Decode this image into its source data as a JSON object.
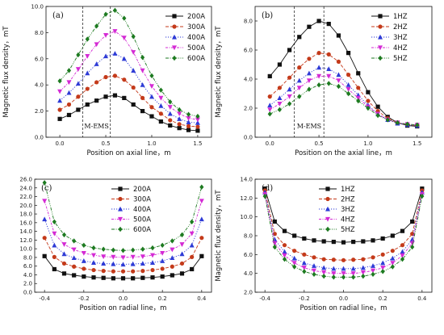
{
  "colors": {
    "black": "#111111",
    "red": "#c43a1a",
    "blue": "#2e3bd6",
    "magenta": "#d42ad4",
    "green": "#1d7a20"
  },
  "chart_data": [
    {
      "panel": "(a)",
      "type": "line",
      "xlabel": "Position on axial line，m",
      "ylabel": "Magnetic flux density，mT",
      "xlim": [
        -0.15,
        1.65
      ],
      "ylim": [
        0.0,
        10.0
      ],
      "xticks": [
        "0.0",
        "0.5",
        "1.0",
        "1.5"
      ],
      "yticks": [
        "0.0",
        "2.0",
        "4.0",
        "6.0",
        "8.0",
        "10.0"
      ],
      "xtick_values": [
        0,
        0.5,
        1.0,
        1.5
      ],
      "ytick_values": [
        0,
        2,
        4,
        6,
        8,
        10
      ],
      "legend_position": "top-right",
      "annotation": "M-EMS",
      "vlines": [
        0.25,
        0.55
      ],
      "x": [
        0.0,
        0.1,
        0.2,
        0.3,
        0.4,
        0.5,
        0.6,
        0.7,
        0.8,
        0.9,
        1.0,
        1.1,
        1.2,
        1.3,
        1.4,
        1.5
      ],
      "series": [
        {
          "name": "200A",
          "color": "black",
          "marker": "square",
          "values": [
            1.4,
            1.7,
            2.1,
            2.5,
            2.8,
            3.1,
            3.2,
            3.0,
            2.5,
            2.0,
            1.6,
            1.2,
            0.9,
            0.7,
            0.55,
            0.5
          ]
        },
        {
          "name": "300A",
          "color": "red",
          "marker": "circle",
          "values": [
            2.1,
            2.5,
            3.1,
            3.7,
            4.2,
            4.6,
            4.7,
            4.4,
            3.8,
            3.0,
            2.3,
            1.8,
            1.3,
            1.0,
            0.85,
            0.8
          ]
        },
        {
          "name": "400A",
          "color": "blue",
          "marker": "triangle-up",
          "values": [
            2.8,
            3.4,
            4.1,
            4.9,
            5.6,
            6.2,
            6.4,
            6.0,
            5.1,
            4.0,
            3.1,
            2.4,
            1.8,
            1.4,
            1.15,
            1.1
          ]
        },
        {
          "name": "500A",
          "color": "magenta",
          "marker": "triangle-down",
          "values": [
            3.5,
            4.2,
            5.2,
            6.2,
            7.1,
            7.8,
            8.1,
            7.6,
            6.5,
            5.1,
            3.9,
            3.0,
            2.3,
            1.8,
            1.45,
            1.35
          ]
        },
        {
          "name": "600A",
          "color": "green",
          "marker": "diamond",
          "values": [
            4.3,
            5.1,
            6.3,
            7.5,
            8.5,
            9.4,
            9.7,
            9.1,
            7.7,
            6.1,
            4.7,
            3.6,
            2.7,
            2.1,
            1.75,
            1.6
          ]
        }
      ]
    },
    {
      "panel": "(b)",
      "type": "line",
      "xlabel": "Position on the axial line，m",
      "ylabel": "Magnetic flux density，mT",
      "xlim": [
        -0.15,
        1.65
      ],
      "ylim": [
        0.0,
        9.0
      ],
      "xticks": [
        "0.0",
        "0.5",
        "1.0",
        "1.5"
      ],
      "yticks": [
        "0.0",
        "2.0",
        "4.0",
        "6.0",
        "8.0"
      ],
      "xtick_values": [
        0,
        0.5,
        1.0,
        1.5
      ],
      "ytick_values": [
        0,
        2,
        4,
        6,
        8
      ],
      "legend_position": "top-right",
      "annotation": "M-EMS",
      "vlines": [
        0.25,
        0.55
      ],
      "x": [
        0.0,
        0.1,
        0.2,
        0.3,
        0.4,
        0.5,
        0.6,
        0.7,
        0.8,
        0.9,
        1.0,
        1.1,
        1.2,
        1.3,
        1.4,
        1.5
      ],
      "series": [
        {
          "name": "1HZ",
          "color": "black",
          "marker": "square",
          "values": [
            4.2,
            5.0,
            6.0,
            6.9,
            7.6,
            8.0,
            7.8,
            7.0,
            5.8,
            4.4,
            3.1,
            2.1,
            1.4,
            1.0,
            0.8,
            0.75
          ]
        },
        {
          "name": "2HZ",
          "color": "red",
          "marker": "circle",
          "values": [
            2.8,
            3.4,
            4.1,
            4.8,
            5.4,
            5.8,
            5.7,
            5.2,
            4.3,
            3.4,
            2.5,
            1.8,
            1.3,
            1.0,
            0.85,
            0.8
          ]
        },
        {
          "name": "3HZ",
          "color": "blue",
          "marker": "triangle-up",
          "values": [
            2.2,
            2.7,
            3.3,
            3.9,
            4.4,
            4.8,
            4.7,
            4.3,
            3.6,
            2.9,
            2.2,
            1.6,
            1.2,
            0.95,
            0.85,
            0.8
          ]
        },
        {
          "name": "4HZ",
          "color": "magenta",
          "marker": "triangle-down",
          "values": [
            1.9,
            2.3,
            2.8,
            3.4,
            3.9,
            4.2,
            4.2,
            3.9,
            3.3,
            2.7,
            2.1,
            1.6,
            1.2,
            1.0,
            0.9,
            0.85
          ]
        },
        {
          "name": "5HZ",
          "color": "green",
          "marker": "diamond",
          "values": [
            1.6,
            1.9,
            2.3,
            2.8,
            3.3,
            3.6,
            3.7,
            3.5,
            3.0,
            2.5,
            2.0,
            1.5,
            1.2,
            1.0,
            0.9,
            0.85
          ]
        }
      ]
    },
    {
      "panel": "(c)",
      "type": "line",
      "xlabel": "Position on radial line，m",
      "ylabel": "",
      "xlim": [
        -0.45,
        0.45
      ],
      "ylim": [
        0.0,
        26.0
      ],
      "xticks": [
        "-0.4",
        "-0.2",
        "0.0",
        "0.2",
        "0.4"
      ],
      "yticks": [
        "0.0",
        "2.0",
        "4.0",
        "6.0",
        "8.0",
        "10.0",
        "12.0",
        "14.0",
        "16.0",
        "18.0",
        "20.0",
        "22.0",
        "24.0",
        "26.0"
      ],
      "xtick_values": [
        -0.4,
        -0.2,
        0,
        0.2,
        0.4
      ],
      "ytick_values": [
        0,
        2,
        4,
        6,
        8,
        10,
        12,
        14,
        16,
        18,
        20,
        22,
        24,
        26
      ],
      "legend_position": "top-center",
      "x": [
        -0.4,
        -0.35,
        -0.3,
        -0.25,
        -0.2,
        -0.15,
        -0.1,
        -0.05,
        0.0,
        0.05,
        0.1,
        0.15,
        0.2,
        0.25,
        0.3,
        0.35,
        0.4
      ],
      "series": [
        {
          "name": "200A",
          "color": "black",
          "marker": "square",
          "values": [
            8.3,
            5.3,
            4.3,
            3.9,
            3.6,
            3.4,
            3.3,
            3.2,
            3.2,
            3.2,
            3.3,
            3.4,
            3.6,
            3.9,
            4.3,
            5.3,
            8.3
          ]
        },
        {
          "name": "300A",
          "color": "red",
          "marker": "circle",
          "values": [
            12.5,
            8.1,
            6.6,
            5.9,
            5.4,
            5.1,
            4.9,
            4.8,
            4.8,
            4.8,
            4.9,
            5.1,
            5.4,
            5.9,
            6.6,
            8.1,
            12.5
          ]
        },
        {
          "name": "400A",
          "color": "blue",
          "marker": "triangle-up",
          "values": [
            16.8,
            10.8,
            8.8,
            7.9,
            7.2,
            6.8,
            6.6,
            6.5,
            6.4,
            6.5,
            6.6,
            6.8,
            7.2,
            7.9,
            8.8,
            10.8,
            16.8
          ]
        },
        {
          "name": "500A",
          "color": "magenta",
          "marker": "triangle-down",
          "values": [
            21.0,
            13.5,
            11.0,
            9.8,
            9.0,
            8.5,
            8.2,
            8.1,
            8.0,
            8.1,
            8.2,
            8.5,
            9.0,
            9.8,
            11.0,
            13.5,
            21.0
          ]
        },
        {
          "name": "600A",
          "color": "green",
          "marker": "diamond",
          "values": [
            25.2,
            16.2,
            13.2,
            11.8,
            10.8,
            10.2,
            9.9,
            9.7,
            9.6,
            9.7,
            9.9,
            10.2,
            10.8,
            11.8,
            13.2,
            16.2,
            24.2
          ]
        }
      ]
    },
    {
      "panel": "(d)",
      "type": "line",
      "xlabel": "Position on radial line，m",
      "ylabel": "Magnetic flux density，mT",
      "xlim": [
        -0.45,
        0.45
      ],
      "ylim": [
        2.0,
        14.0
      ],
      "xticks": [
        "-0.4",
        "-0.2",
        "0.0",
        "0.2",
        "0.4"
      ],
      "yticks": [
        "2.0",
        "4.0",
        "6.0",
        "8.0",
        "10.0",
        "12.0",
        "14.0"
      ],
      "xtick_values": [
        -0.4,
        -0.2,
        0,
        0.2,
        0.4
      ],
      "ytick_values": [
        2,
        4,
        6,
        8,
        10,
        12,
        14
      ],
      "legend_position": "top-center",
      "x": [
        -0.4,
        -0.35,
        -0.3,
        -0.25,
        -0.2,
        -0.15,
        -0.1,
        -0.05,
        0.0,
        0.05,
        0.1,
        0.15,
        0.2,
        0.25,
        0.3,
        0.35,
        0.4
      ],
      "series": [
        {
          "name": "1HZ",
          "color": "black",
          "marker": "square",
          "values": [
            13.0,
            9.5,
            8.5,
            8.0,
            7.7,
            7.5,
            7.4,
            7.35,
            7.3,
            7.35,
            7.4,
            7.5,
            7.7,
            8.0,
            8.5,
            9.5,
            13.0
          ]
        },
        {
          "name": "2HZ",
          "color": "red",
          "marker": "circle",
          "values": [
            12.8,
            8.2,
            7.0,
            6.4,
            6.0,
            5.7,
            5.5,
            5.45,
            5.4,
            5.45,
            5.5,
            5.7,
            6.0,
            6.4,
            7.0,
            8.2,
            12.8
          ]
        },
        {
          "name": "3HZ",
          "color": "blue",
          "marker": "triangle-up",
          "values": [
            12.6,
            7.6,
            6.3,
            5.6,
            5.1,
            4.8,
            4.6,
            4.5,
            4.5,
            4.5,
            4.6,
            4.8,
            5.1,
            5.6,
            6.3,
            7.6,
            12.6
          ]
        },
        {
          "name": "4HZ",
          "color": "magenta",
          "marker": "triangle-down",
          "values": [
            12.4,
            7.2,
            5.9,
            5.1,
            4.6,
            4.3,
            4.1,
            4.0,
            4.0,
            4.0,
            4.1,
            4.3,
            4.6,
            5.1,
            5.9,
            7.2,
            12.4
          ]
        },
        {
          "name": "5HZ",
          "color": "green",
          "marker": "diamond",
          "values": [
            12.2,
            6.8,
            5.5,
            4.7,
            4.2,
            3.9,
            3.7,
            3.6,
            3.6,
            3.6,
            3.7,
            3.9,
            4.2,
            4.7,
            5.5,
            6.8,
            12.2
          ]
        }
      ]
    }
  ]
}
